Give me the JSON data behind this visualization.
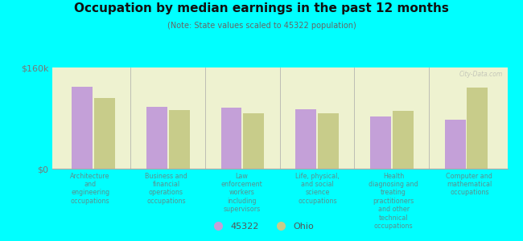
{
  "title": "Occupation by median earnings in the past 12 months",
  "subtitle": "(Note: State values scaled to 45322 population)",
  "background_color": "#00FFFF",
  "plot_bg_color": "#eef2d0",
  "categories": [
    "Architecture\nand\nengineering\noccupations",
    "Business and\nfinancial\noperations\noccupations",
    "Law\nenforcement\nworkers\nincluding\nsupervisors",
    "Life, physical,\nand social\nscience\noccupations",
    "Health\ndiagnosing and\ntreating\npractitioners\nand other\ntechnical\noccupations",
    "Computer and\nmathematical\noccupations"
  ],
  "values_45322": [
    130000,
    98000,
    97000,
    94000,
    82000,
    78000
  ],
  "values_ohio": [
    112000,
    93000,
    87000,
    87000,
    92000,
    128000
  ],
  "color_45322": "#c4a0d8",
  "color_ohio": "#c8cc8a",
  "ylim": [
    0,
    160000
  ],
  "ytick_labels": [
    "$0",
    "$160k"
  ],
  "legend_45322": "45322",
  "legend_ohio": "Ohio",
  "watermark": "City-Data.com",
  "label_color": "#5a9090",
  "ytick_color": "#777777",
  "title_color": "#111111",
  "subtitle_color": "#666666"
}
